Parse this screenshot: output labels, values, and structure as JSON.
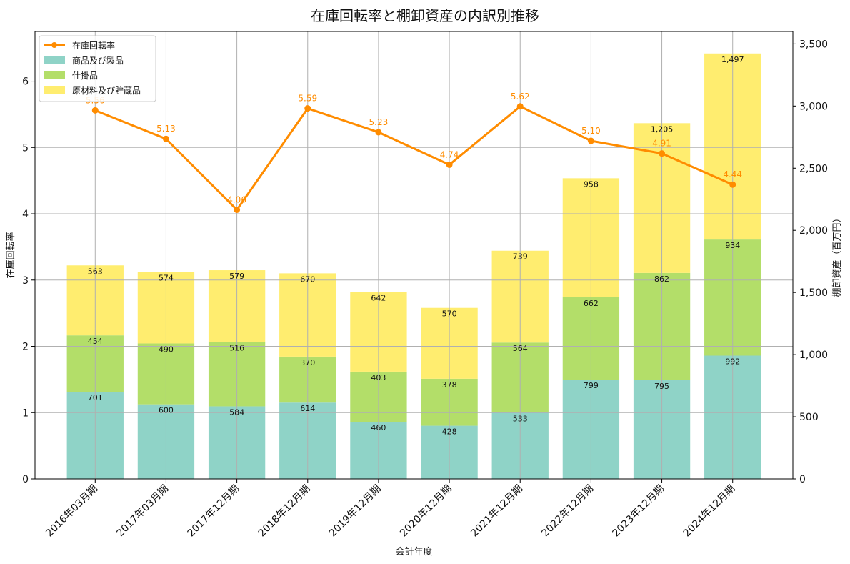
{
  "chart_data": {
    "type": "bar",
    "title": "在庫回転率と棚卸資産の内訳別推移",
    "xlabel": "会計年度",
    "ylabel": "在庫回転率",
    "y2label": "棚卸資産（百万円）",
    "categories": [
      "2016年03月期",
      "2017年03月期",
      "2017年12月期",
      "2018年12月期",
      "2019年12月期",
      "2020年12月期",
      "2021年12月期",
      "2022年12月期",
      "2023年12月期",
      "2024年12月期"
    ],
    "ylim": [
      0,
      6.75
    ],
    "y2lim": [
      0,
      3600
    ],
    "yticks": [
      0,
      1,
      2,
      3,
      4,
      5,
      6
    ],
    "y2ticks": [
      0,
      500,
      1000,
      1500,
      2000,
      2500,
      3000,
      3500
    ],
    "y2tick_labels": [
      "0",
      "500",
      "1,000",
      "1,500",
      "2,000",
      "2,500",
      "3,000",
      "3,500"
    ],
    "grid": true,
    "legend_position": "top-left",
    "series": [
      {
        "name": "商品及び製品",
        "kind": "bar",
        "color": "#8fd3c7",
        "values": [
          701,
          600,
          584,
          614,
          460,
          428,
          533,
          799,
          795,
          992
        ]
      },
      {
        "name": "仕掛品",
        "kind": "bar",
        "color": "#b3de69",
        "values": [
          454,
          490,
          516,
          370,
          403,
          378,
          564,
          662,
          862,
          934
        ]
      },
      {
        "name": "原材料及び貯蔵品",
        "kind": "bar",
        "color": "#ffed6f",
        "values": [
          563,
          574,
          579,
          670,
          642,
          570,
          739,
          958,
          1205,
          1497
        ]
      },
      {
        "name": "在庫回転率",
        "kind": "line",
        "color": "#ff8c00",
        "values": [
          5.56,
          5.13,
          4.06,
          5.59,
          5.23,
          4.74,
          5.62,
          5.1,
          4.91,
          4.44
        ]
      }
    ],
    "bar_value_labels": [
      [
        "701",
        "600",
        "584",
        "614",
        "460",
        "428",
        "533",
        "799",
        "795",
        "992"
      ],
      [
        "454",
        "490",
        "516",
        "370",
        "403",
        "378",
        "564",
        "662",
        "862",
        "934"
      ],
      [
        "563",
        "574",
        "579",
        "670",
        "642",
        "570",
        "739",
        "958",
        "1,205",
        "1,497"
      ]
    ],
    "line_value_labels": [
      "5.56",
      "5.13",
      "4.06",
      "5.59",
      "5.23",
      "4.74",
      "5.62",
      "5.10",
      "4.91",
      "4.44"
    ]
  }
}
